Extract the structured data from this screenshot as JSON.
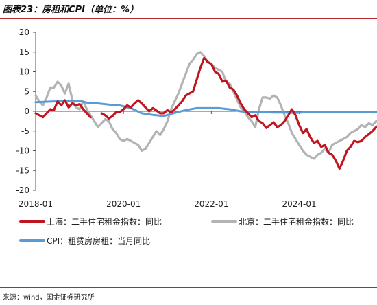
{
  "title": "图表23：房租和CPI（单位：%）",
  "source": "来源：wind，国金证券研究所",
  "colors": {
    "shanghai": "#c0141f",
    "beijing": "#b3b3b3",
    "cpi": "#5b9bd5",
    "rule": "#b0282d"
  },
  "chart_data": {
    "type": "line",
    "title": "图表23：房租和CPI（单位：%）",
    "xlabel": "",
    "ylabel": "",
    "ylim": [
      -20,
      20
    ],
    "yticks": [
      20,
      15,
      10,
      5,
      0,
      -5,
      -10,
      -15,
      -20
    ],
    "xlim": [
      "2018-01",
      "2025-08"
    ],
    "xticks": [
      "2018-01",
      "2020-01",
      "2022-01",
      "2024-01"
    ],
    "grid": false,
    "legend_position": "bottom",
    "series": [
      {
        "name": "上海：二手住宅租金指数：同比",
        "points": [
          [
            "2018-01",
            -0.5
          ],
          [
            "2018-03",
            -1.5
          ],
          [
            "2018-05",
            0.5
          ],
          [
            "2018-06",
            0.3
          ],
          [
            "2018-07",
            2.5
          ],
          [
            "2018-08",
            1.5
          ],
          [
            "2018-09",
            2.8
          ],
          [
            "2018-10",
            1.0
          ],
          [
            "2018-11",
            2.0
          ],
          [
            "2018-12",
            1.5
          ],
          [
            "2019-01",
            1.8
          ],
          [
            "2019-02",
            0.5
          ],
          [
            "2019-03",
            -0.5
          ],
          [
            "2019-04",
            -1.5
          ]
        ]
      },
      {
        "name": "上海：二手住宅租金指数：同比",
        "points": [
          [
            "2019-07",
            -0.5
          ],
          [
            "2019-08",
            -1.0
          ],
          [
            "2019-09",
            -1.8
          ],
          [
            "2019-10",
            -1.2
          ],
          [
            "2019-11",
            -0.2
          ],
          [
            "2019-12",
            -0.2
          ],
          [
            "2020-01",
            0.5
          ],
          [
            "2020-02",
            1.5
          ],
          [
            "2020-03",
            1.0
          ],
          [
            "2020-04",
            2.0
          ],
          [
            "2020-05",
            2.8
          ],
          [
            "2020-06",
            2.0
          ],
          [
            "2020-07",
            1.0
          ],
          [
            "2020-08",
            0.0
          ],
          [
            "2020-09",
            0.8
          ],
          [
            "2020-10",
            0.2
          ],
          [
            "2020-11",
            -0.5
          ],
          [
            "2020-12",
            -0.5
          ],
          [
            "2021-01",
            0.3
          ],
          [
            "2021-02",
            -0.3
          ],
          [
            "2021-03",
            0.5
          ],
          [
            "2021-04",
            1.5
          ],
          [
            "2021-05",
            2.5
          ],
          [
            "2021-06",
            4.0
          ],
          [
            "2021-07",
            4.5
          ],
          [
            "2021-08",
            5.0
          ],
          [
            "2021-09",
            8.0
          ],
          [
            "2021-10",
            11.0
          ],
          [
            "2021-11",
            13.5
          ],
          [
            "2021-12",
            12.5
          ],
          [
            "2022-01",
            12.0
          ],
          [
            "2022-02",
            10.0
          ],
          [
            "2022-03",
            9.5
          ],
          [
            "2022-04",
            7.5
          ],
          [
            "2022-05",
            7.8
          ],
          [
            "2022-06",
            6.0
          ],
          [
            "2022-07",
            5.5
          ],
          [
            "2022-08",
            4.0
          ],
          [
            "2022-09",
            2.0
          ],
          [
            "2022-10",
            0.5
          ],
          [
            "2022-11",
            -0.5
          ],
          [
            "2022-12",
            -1.5
          ],
          [
            "2023-01",
            -1.0
          ],
          [
            "2023-02",
            -2.5
          ],
          [
            "2023-03",
            -3.0
          ],
          [
            "2023-04",
            -4.2
          ],
          [
            "2023-05",
            -3.5
          ],
          [
            "2023-06",
            -2.8
          ],
          [
            "2023-07",
            -4.0
          ],
          [
            "2023-08",
            -3.5
          ],
          [
            "2023-09",
            -2.5
          ],
          [
            "2023-10",
            -1.0
          ],
          [
            "2023-11",
            0.5
          ],
          [
            "2023-12",
            -1.0
          ],
          [
            "2024-01",
            -3.5
          ],
          [
            "2024-02",
            -5.5
          ],
          [
            "2024-03",
            -4.5
          ],
          [
            "2024-04",
            -6.5
          ],
          [
            "2024-05",
            -8.0
          ],
          [
            "2024-06",
            -7.5
          ],
          [
            "2024-07",
            -9.0
          ],
          [
            "2024-08",
            -8.5
          ],
          [
            "2024-09",
            -10.5
          ],
          [
            "2024-10",
            -11.0
          ],
          [
            "2024-11",
            -12.5
          ],
          [
            "2024-12",
            -14.5
          ],
          [
            "2025-01",
            -12.5
          ],
          [
            "2025-02",
            -10.0
          ],
          [
            "2025-03",
            -9.0
          ],
          [
            "2025-04",
            -7.5
          ],
          [
            "2025-05",
            -7.8
          ],
          [
            "2025-06",
            -7.5
          ],
          [
            "2025-07",
            -6.5
          ],
          [
            "2025-08",
            -5.8
          ],
          [
            "2025-09",
            -5.0
          ],
          [
            "2025-10",
            -4.0
          ],
          [
            "2025-11",
            -3.5
          ],
          [
            "2025-12",
            -3.0
          ],
          [
            "2026-01",
            -2.5
          ]
        ]
      },
      {
        "name": "北京：二手住宅租金指数：同比",
        "points": [
          [
            "2018-01",
            4.0
          ],
          [
            "2018-02",
            2.5
          ],
          [
            "2018-03",
            1.5
          ],
          [
            "2018-04",
            3.5
          ],
          [
            "2018-05",
            6.0
          ],
          [
            "2018-06",
            6.0
          ],
          [
            "2018-07",
            7.5
          ],
          [
            "2018-08",
            6.5
          ],
          [
            "2018-09",
            4.5
          ],
          [
            "2018-10",
            7.0
          ],
          [
            "2018-11",
            3.0
          ],
          [
            "2018-12",
            1.0
          ],
          [
            "2019-01",
            0.5
          ],
          [
            "2019-02",
            2.5
          ],
          [
            "2019-03",
            0.5
          ],
          [
            "2019-04",
            -1.0
          ],
          [
            "2019-05",
            -2.5
          ],
          [
            "2019-06",
            -4.0
          ],
          [
            "2019-07",
            -3.0
          ],
          [
            "2019-08",
            -2.0
          ],
          [
            "2019-09",
            -2.5
          ],
          [
            "2019-10",
            -4.5
          ],
          [
            "2019-11",
            -5.5
          ],
          [
            "2019-12",
            -7.0
          ],
          [
            "2020-01",
            -7.5
          ],
          [
            "2020-02",
            -7.0
          ],
          [
            "2020-03",
            -7.5
          ],
          [
            "2020-04",
            -8.0
          ],
          [
            "2020-05",
            -8.5
          ],
          [
            "2020-06",
            -10.0
          ],
          [
            "2020-07",
            -9.5
          ],
          [
            "2020-08",
            -8.0
          ],
          [
            "2020-09",
            -6.5
          ],
          [
            "2020-10",
            -5.0
          ],
          [
            "2020-11",
            -6.0
          ],
          [
            "2020-12",
            -4.5
          ],
          [
            "2021-01",
            -2.5
          ],
          [
            "2021-02",
            0.5
          ],
          [
            "2021-03",
            2.5
          ],
          [
            "2021-04",
            4.5
          ],
          [
            "2021-05",
            7.0
          ],
          [
            "2021-06",
            9.5
          ],
          [
            "2021-07",
            12.0
          ],
          [
            "2021-08",
            13.0
          ],
          [
            "2021-09",
            14.5
          ],
          [
            "2021-10",
            15.0
          ],
          [
            "2021-11",
            14.0
          ],
          [
            "2021-12",
            12.5
          ],
          [
            "2022-01",
            12.0
          ],
          [
            "2022-02",
            11.0
          ],
          [
            "2022-03",
            10.5
          ],
          [
            "2022-04",
            10.0
          ],
          [
            "2022-05",
            7.5
          ],
          [
            "2022-06",
            7.0
          ],
          [
            "2022-07",
            5.0
          ],
          [
            "2022-08",
            3.0
          ],
          [
            "2022-09",
            1.0
          ],
          [
            "2022-10",
            0.0
          ],
          [
            "2022-11",
            -1.5
          ],
          [
            "2022-12",
            -2.5
          ],
          [
            "2023-01",
            -4.0
          ],
          [
            "2023-02",
            0.5
          ],
          [
            "2023-03",
            3.5
          ],
          [
            "2023-04",
            3.5
          ],
          [
            "2023-05",
            3.2
          ],
          [
            "2023-06",
            4.0
          ],
          [
            "2023-07",
            3.5
          ],
          [
            "2023-08",
            1.5
          ],
          [
            "2023-09",
            -1.0
          ],
          [
            "2023-10",
            -3.0
          ],
          [
            "2023-11",
            -5.5
          ],
          [
            "2023-12",
            -7.0
          ],
          [
            "2024-01",
            -8.5
          ],
          [
            "2024-02",
            -10.0
          ],
          [
            "2024-03",
            -11.0
          ],
          [
            "2024-04",
            -11.5
          ],
          [
            "2024-05",
            -12.0
          ],
          [
            "2024-06",
            -11.0
          ],
          [
            "2024-07",
            -10.5
          ],
          [
            "2024-08",
            -9.5
          ],
          [
            "2024-09",
            -10.5
          ],
          [
            "2024-10",
            -8.5
          ],
          [
            "2024-11",
            -8.0
          ],
          [
            "2024-12",
            -7.5
          ],
          [
            "2025-01",
            -7.0
          ],
          [
            "2025-02",
            -6.5
          ],
          [
            "2025-03",
            -5.5
          ],
          [
            "2025-04",
            -5.0
          ],
          [
            "2025-05",
            -4.5
          ],
          [
            "2025-06",
            -3.5
          ],
          [
            "2025-07",
            -4.0
          ],
          [
            "2025-08",
            -3.0
          ],
          [
            "2025-09",
            -3.5
          ],
          [
            "2025-10",
            -2.5
          ],
          [
            "2025-11",
            -3.0
          ],
          [
            "2025-12",
            -2.5
          ],
          [
            "2026-01",
            -2.5
          ]
        ]
      },
      {
        "name": "CPI：租赁房房租：当月同比",
        "points": [
          [
            "2018-01",
            2.3
          ],
          [
            "2018-06",
            2.5
          ],
          [
            "2019-01",
            2.6
          ],
          [
            "2019-03",
            2.2
          ],
          [
            "2019-06",
            2.0
          ],
          [
            "2019-09",
            1.7
          ],
          [
            "2019-12",
            1.5
          ],
          [
            "2020-03",
            0.8
          ],
          [
            "2020-06",
            -0.5
          ],
          [
            "2020-09",
            -0.9
          ],
          [
            "2020-12",
            -1.2
          ],
          [
            "2021-03",
            -0.4
          ],
          [
            "2021-06",
            0.3
          ],
          [
            "2021-09",
            0.8
          ],
          [
            "2021-12",
            0.8
          ],
          [
            "2022-03",
            0.8
          ],
          [
            "2022-06",
            0.5
          ],
          [
            "2022-09",
            0.0
          ],
          [
            "2022-12",
            -0.3
          ],
          [
            "2023-03",
            -0.2
          ],
          [
            "2023-06",
            -0.3
          ],
          [
            "2023-09",
            -0.3
          ],
          [
            "2023-12",
            -0.4
          ],
          [
            "2024-03",
            -0.2
          ],
          [
            "2024-06",
            -0.1
          ],
          [
            "2024-09",
            -0.1
          ],
          [
            "2024-12",
            -0.2
          ],
          [
            "2025-03",
            -0.1
          ],
          [
            "2025-06",
            -0.2
          ],
          [
            "2025-09",
            -0.1
          ],
          [
            "2026-01",
            -0.2
          ]
        ]
      }
    ],
    "legend": [
      {
        "label": "上海：二手住宅租金指数：同比",
        "color": "#c0141f"
      },
      {
        "label": "北京：二手住宅租金指数：同比",
        "color": "#b3b3b3"
      },
      {
        "label": "CPI：租赁房房租：当月同比",
        "color": "#5b9bd5"
      }
    ]
  }
}
